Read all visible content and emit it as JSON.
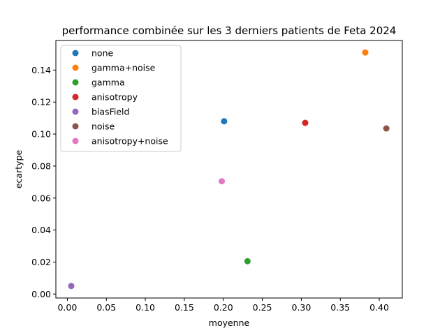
{
  "chart_data": {
    "type": "scatter",
    "title": "performance combinée sur les 3 derniers patients de Feta 2024",
    "xlabel": "moyenne",
    "ylabel": "ecartype",
    "xlim": [
      -0.0147,
      0.4295
    ],
    "ylim": [
      -0.0025,
      0.1585
    ],
    "xticks": [
      "0.00",
      "0.05",
      "0.10",
      "0.15",
      "0.20",
      "0.25",
      "0.30",
      "0.35",
      "0.40"
    ],
    "yticks": [
      "0.00",
      "0.02",
      "0.04",
      "0.06",
      "0.08",
      "0.10",
      "0.12",
      "0.14"
    ],
    "grid": false,
    "legend_position": "top-left",
    "series": [
      {
        "name": "none",
        "color": "#1f77b4",
        "x": 0.201,
        "y": 0.108
      },
      {
        "name": "gamma+noise",
        "color": "#ff7f0e",
        "x": 0.382,
        "y": 0.151
      },
      {
        "name": "gamma",
        "color": "#2ca02c",
        "x": 0.231,
        "y": 0.0205
      },
      {
        "name": "anisotropy",
        "color": "#d62728",
        "x": 0.305,
        "y": 0.107
      },
      {
        "name": "biasField",
        "color": "#9467bd",
        "x": 0.005,
        "y": 0.005
      },
      {
        "name": "noise",
        "color": "#8c564b",
        "x": 0.409,
        "y": 0.1035
      },
      {
        "name": "anisotropy+noise",
        "color": "#e377c2",
        "x": 0.198,
        "y": 0.0705
      }
    ]
  }
}
